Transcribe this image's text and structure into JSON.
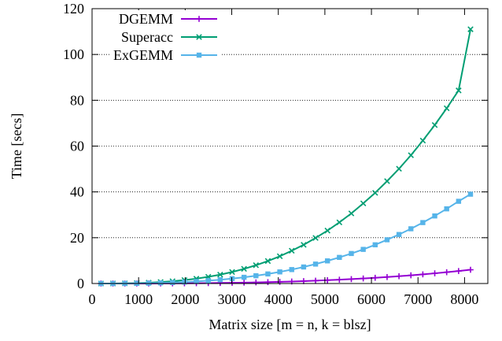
{
  "chart_data": {
    "type": "line",
    "title": "",
    "xlabel": "Matrix size [m = n, k = blsz]",
    "ylabel": "Time [secs]",
    "xlim": [
      0,
      8500
    ],
    "ylim": [
      0,
      120
    ],
    "xticks": [
      "0",
      "1000",
      "2000",
      "3000",
      "4000",
      "5000",
      "6000",
      "7000",
      "8000"
    ],
    "yticks": [
      "0",
      "20",
      "40",
      "60",
      "80",
      "100",
      "120"
    ],
    "grid": "horizontal dotted",
    "legend": "top-left",
    "x": [
      192,
      448,
      704,
      960,
      1216,
      1472,
      1728,
      1984,
      2240,
      2496,
      2752,
      3008,
      3264,
      3520,
      3776,
      4032,
      4288,
      4544,
      4800,
      5056,
      5312,
      5568,
      5824,
      6080,
      6336,
      6592,
      6848,
      7104,
      7360,
      7616,
      7872,
      8128
    ],
    "series": [
      {
        "name": "DGEMM",
        "color": "#9400d3",
        "marker": "plus",
        "values": [
          0.0,
          0.0,
          0.0,
          0.01,
          0.02,
          0.04,
          0.06,
          0.09,
          0.13,
          0.18,
          0.24,
          0.31,
          0.39,
          0.49,
          0.6,
          0.73,
          0.88,
          1.04,
          1.23,
          1.44,
          1.67,
          1.92,
          2.2,
          2.5,
          2.83,
          3.19,
          3.58,
          4.0,
          4.45,
          4.93,
          5.45,
          6.0
        ]
      },
      {
        "name": "Superacc",
        "color": "#009e73",
        "marker": "x",
        "values": [
          0.0,
          0.02,
          0.08,
          0.19,
          0.36,
          0.63,
          1.0,
          1.49,
          2.12,
          2.91,
          3.87,
          5.03,
          6.39,
          7.99,
          9.82,
          11.9,
          14.3,
          16.9,
          19.9,
          23.1,
          26.7,
          30.6,
          35.0,
          39.6,
          44.7,
          50.1,
          56.0,
          62.4,
          69.2,
          76.5,
          84.3,
          111.0
        ]
      },
      {
        "name": "ExGEMM",
        "color": "#56b4e9",
        "marker": "square",
        "values": [
          0.0,
          0.01,
          0.03,
          0.08,
          0.15,
          0.26,
          0.42,
          0.63,
          0.9,
          1.24,
          1.65,
          2.14,
          2.72,
          3.4,
          4.18,
          5.07,
          6.08,
          7.22,
          8.48,
          9.88,
          11.4,
          13.1,
          14.9,
          16.9,
          19.1,
          21.4,
          23.9,
          26.6,
          29.5,
          32.6,
          35.9,
          39.0
        ]
      }
    ]
  }
}
